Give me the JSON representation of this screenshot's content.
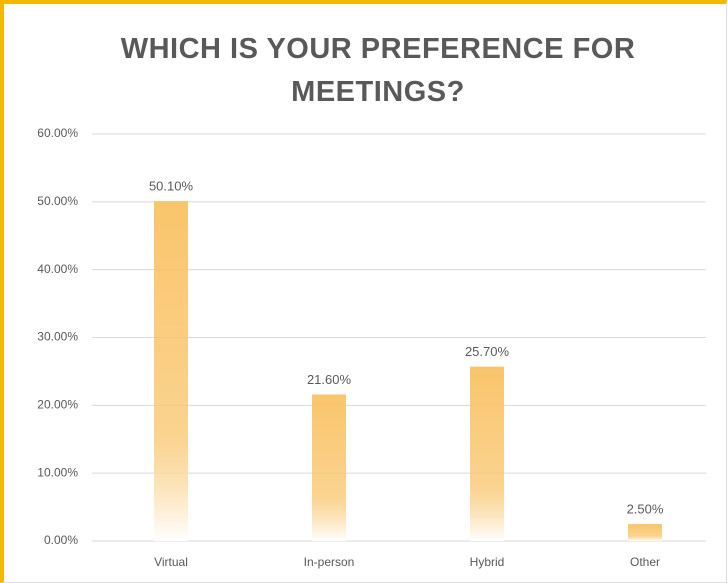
{
  "chart_data": {
    "type": "bar",
    "title": "WHICH IS YOUR PREFERENCE FOR MEETINGS?",
    "categories": [
      "Virtual",
      "In-person",
      "Hybrid",
      "Other"
    ],
    "values": [
      50.1,
      21.6,
      25.7,
      2.5
    ],
    "value_labels": [
      "50.10%",
      "21.60%",
      "25.70%",
      "2.50%"
    ],
    "color": "#f9c56b",
    "ylim": [
      0,
      60
    ],
    "yticks": [
      {
        "value": 0,
        "label": "0.00%"
      },
      {
        "value": 10,
        "label": "10.00%"
      },
      {
        "value": 20,
        "label": "20.00%"
      },
      {
        "value": 30,
        "label": "30.00%"
      },
      {
        "value": 40,
        "label": "40.00%"
      },
      {
        "value": 50,
        "label": "50.00%"
      },
      {
        "value": 60,
        "label": "60.00%"
      }
    ],
    "grid": true
  }
}
